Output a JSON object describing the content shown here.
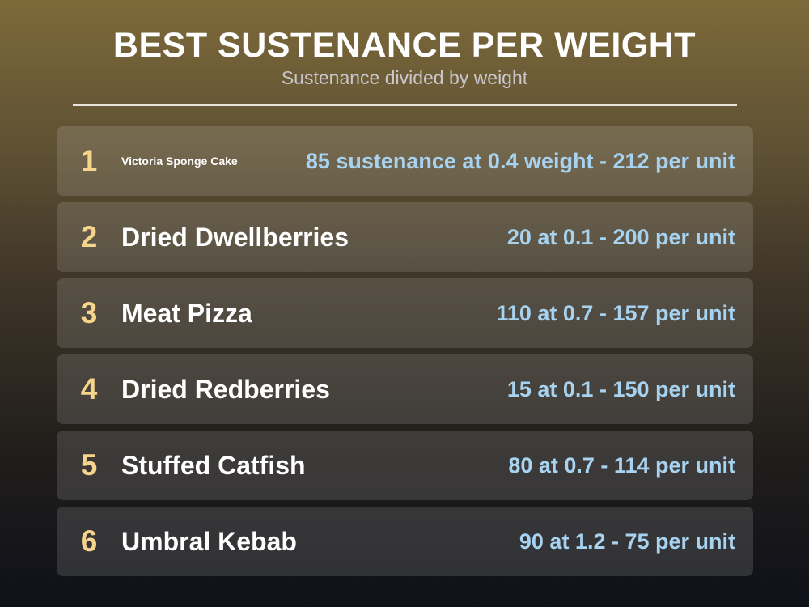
{
  "header": {
    "title": "BEST SUSTENANCE PER WEIGHT",
    "subtitle": "Sustenance divided by weight"
  },
  "items": [
    {
      "rank": "1",
      "name": "Victoria Sponge Cake",
      "stat": "85 sustenance at 0.4 weight - 212 per unit"
    },
    {
      "rank": "2",
      "name": "Dried Dwellberries",
      "stat": "20 at 0.1 - 200 per unit"
    },
    {
      "rank": "3",
      "name": "Meat Pizza",
      "stat": "110 at 0.7 - 157 per unit"
    },
    {
      "rank": "4",
      "name": "Dried Redberries",
      "stat": "15 at 0.1 - 150 per unit"
    },
    {
      "rank": "5",
      "name": "Stuffed Catfish",
      "stat": "80 at 0.7 - 114 per unit"
    },
    {
      "rank": "6",
      "name": "Umbral Kebab",
      "stat": "90 at 1.2 - 75 per unit"
    }
  ],
  "colors": {
    "rank": "#f5d48c",
    "stat": "#a7d3f0",
    "name": "#ffffff"
  }
}
